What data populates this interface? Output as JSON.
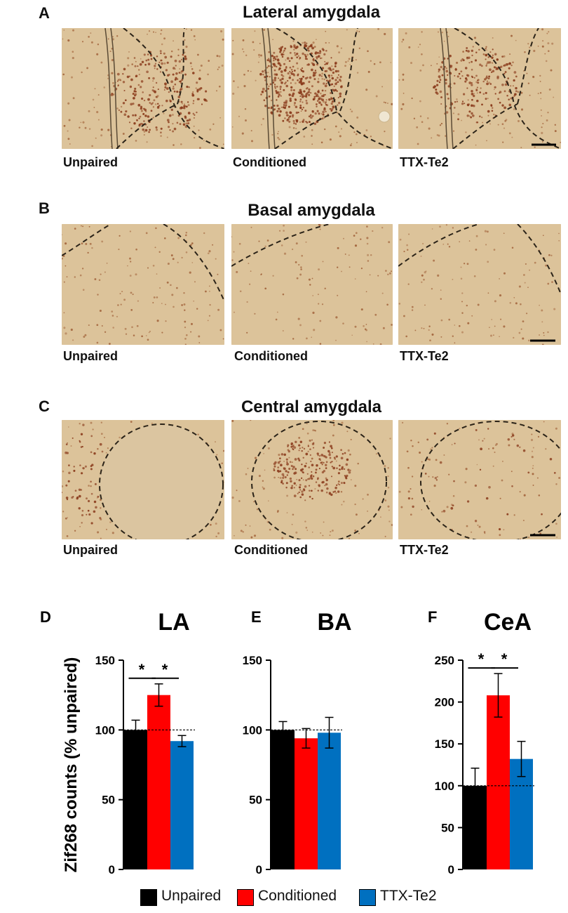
{
  "figure": {
    "rows": [
      {
        "letter": "A",
        "title": "Lateral amygdala",
        "labels": [
          "Unpaired",
          "Conditioned",
          "TTX-Te2"
        ]
      },
      {
        "letter": "B",
        "title": "Basal amygdala",
        "labels": [
          "Unpaired",
          "Conditioned",
          "TTX-Te2"
        ]
      },
      {
        "letter": "C",
        "title": "Central amygdala",
        "labels": [
          "Unpaired",
          "Conditioned",
          "TTX-Te2"
        ]
      }
    ],
    "legend": [
      {
        "label": "Unpaired",
        "color": "#000000"
      },
      {
        "label": "Conditioned",
        "color": "#ff0000"
      },
      {
        "label": "TTX-Te2",
        "color": "#0070c0"
      }
    ],
    "colors": {
      "tissue": "#dcc39a",
      "stained_cells": "#8a3b1c"
    }
  },
  "chart_data": [
    {
      "type": "bar",
      "panel": "D",
      "title": "LA",
      "ylabel": "Zif268 counts (% unpaired)",
      "categories": [
        "Unpaired",
        "Conditioned",
        "TTX-Te2"
      ],
      "values": [
        100,
        125,
        92
      ],
      "errors": [
        7,
        8,
        4
      ],
      "ylim": [
        0,
        150
      ],
      "yticks": [
        "0",
        "50",
        "100",
        "150"
      ],
      "reference_line": 100,
      "significance": [
        "*",
        "*"
      ]
    },
    {
      "type": "bar",
      "panel": "E",
      "title": "BA",
      "categories": [
        "Unpaired",
        "Conditioned",
        "TTX-Te2"
      ],
      "values": [
        100,
        94,
        98
      ],
      "errors": [
        6,
        7,
        11
      ],
      "ylim": [
        0,
        150
      ],
      "yticks": [
        "0",
        "50",
        "100",
        "150"
      ],
      "reference_line": 100,
      "significance": []
    },
    {
      "type": "bar",
      "panel": "F",
      "title": "CeA",
      "categories": [
        "Unpaired",
        "Conditioned",
        "TTX-Te2"
      ],
      "values": [
        100,
        208,
        132
      ],
      "errors": [
        21,
        26,
        21
      ],
      "ylim": [
        0,
        250
      ],
      "yticks": [
        "0",
        "50",
        "100",
        "150",
        "200",
        "250"
      ],
      "reference_line": 100,
      "significance": [
        "*",
        "*"
      ]
    }
  ]
}
